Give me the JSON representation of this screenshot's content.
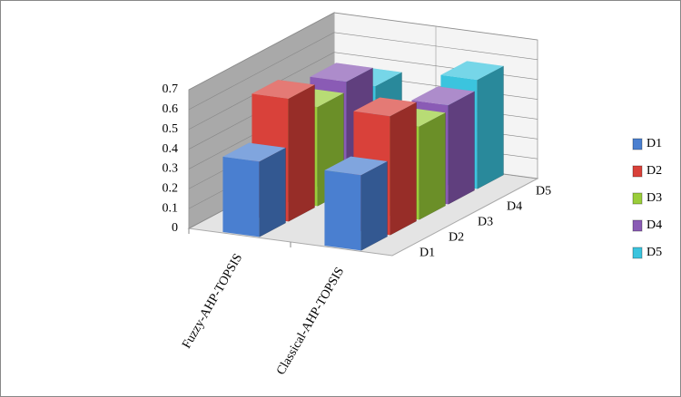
{
  "chart_data": {
    "type": "bar3d",
    "categories": [
      "Fuzzy-AHP-TOPSIS",
      "Classical-AHP-TOPSIS"
    ],
    "series": [
      {
        "name": "D1",
        "color": "#4a7fd0",
        "values": [
          0.38,
          0.38
        ]
      },
      {
        "name": "D2",
        "color": "#d9413a",
        "values": [
          0.62,
          0.6
        ]
      },
      {
        "name": "D3",
        "color": "#9acd3a",
        "values": [
          0.5,
          0.47
        ]
      },
      {
        "name": "D4",
        "color": "#8a5bb5",
        "values": [
          0.55,
          0.5
        ]
      },
      {
        "name": "D5",
        "color": "#3bc4de",
        "values": [
          0.45,
          0.55
        ]
      }
    ],
    "ylim": [
      0,
      0.7
    ],
    "yticks": [
      0,
      0.1,
      0.2,
      0.3,
      0.4,
      0.5,
      0.6,
      0.7
    ],
    "grid": true
  }
}
